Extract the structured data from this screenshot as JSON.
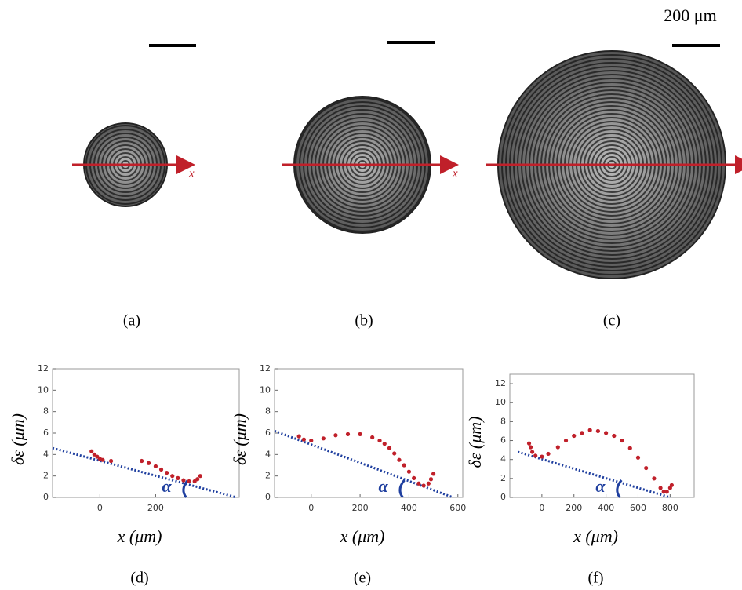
{
  "image_panels": {
    "labels": [
      "(a)",
      "(b)",
      "(c)"
    ],
    "arrow_label": "x",
    "scale_bar": "200 μm"
  },
  "chart_data": [
    {
      "type": "scatter",
      "panel_label": "(d)",
      "xlabel": "x (μm)",
      "ylabel": "δε (μm)",
      "color": "#c0202a",
      "x": [
        -30,
        -20,
        -10,
        0,
        10,
        40,
        150,
        175,
        200,
        220,
        240,
        260,
        280,
        300,
        320,
        340,
        350,
        360
      ],
      "values": [
        4.3,
        4.0,
        3.8,
        3.6,
        3.5,
        3.4,
        3.4,
        3.2,
        2.9,
        2.6,
        2.3,
        2.0,
        1.8,
        1.6,
        1.5,
        1.5,
        1.7,
        2.0
      ],
      "tangent": {
        "x": [
          -170,
          490
        ],
        "values": [
          4.6,
          0
        ],
        "color": "#1f3f9f",
        "label": "α"
      },
      "xlim": [
        -170,
        500
      ],
      "xticks": [
        0,
        200
      ],
      "ylim": [
        0,
        12
      ],
      "yticks": [
        0,
        2,
        4,
        6,
        8,
        10,
        12
      ]
    },
    {
      "type": "scatter",
      "panel_label": "(e)",
      "xlabel": "x (μm)",
      "ylabel": "δε (μm)",
      "color": "#c0202a",
      "x": [
        -50,
        -30,
        0,
        50,
        100,
        150,
        200,
        250,
        280,
        300,
        320,
        340,
        360,
        380,
        400,
        420,
        440,
        460,
        480,
        490,
        500
      ],
      "values": [
        5.7,
        5.4,
        5.3,
        5.5,
        5.8,
        5.9,
        5.9,
        5.6,
        5.3,
        5.0,
        4.6,
        4.1,
        3.5,
        3.0,
        2.4,
        1.8,
        1.3,
        1.1,
        1.3,
        1.7,
        2.2
      ],
      "tangent": {
        "x": [
          -150,
          580
        ],
        "values": [
          6.2,
          0
        ],
        "color": "#1f3f9f",
        "label": "α"
      },
      "xlim": [
        -150,
        620
      ],
      "xticks": [
        0,
        200,
        400,
        600
      ],
      "ylim": [
        0,
        12
      ],
      "yticks": [
        0,
        2,
        4,
        6,
        8,
        10,
        12
      ]
    },
    {
      "type": "scatter",
      "panel_label": "(f)",
      "xlabel": "x (μm)",
      "ylabel": "δε (μm)",
      "color": "#c0202a",
      "x": [
        -80,
        -70,
        -60,
        -40,
        0,
        40,
        100,
        150,
        200,
        250,
        300,
        350,
        400,
        450,
        500,
        550,
        600,
        650,
        700,
        740,
        760,
        780,
        800,
        810
      ],
      "values": [
        5.7,
        5.3,
        4.8,
        4.4,
        4.3,
        4.6,
        5.3,
        6.0,
        6.5,
        6.8,
        7.1,
        7.0,
        6.8,
        6.5,
        6.0,
        5.2,
        4.2,
        3.1,
        2.0,
        1.0,
        0.6,
        0.6,
        1.0,
        1.3
      ],
      "tangent": {
        "x": [
          -150,
          800
        ],
        "values": [
          4.8,
          0
        ],
        "color": "#1f3f9f",
        "label": "α"
      },
      "xlim": [
        -200,
        950
      ],
      "xticks": [
        0,
        200,
        400,
        600,
        800
      ],
      "ylim": [
        0,
        13
      ],
      "yticks": [
        0,
        2,
        4,
        6,
        8,
        10,
        12
      ]
    }
  ]
}
